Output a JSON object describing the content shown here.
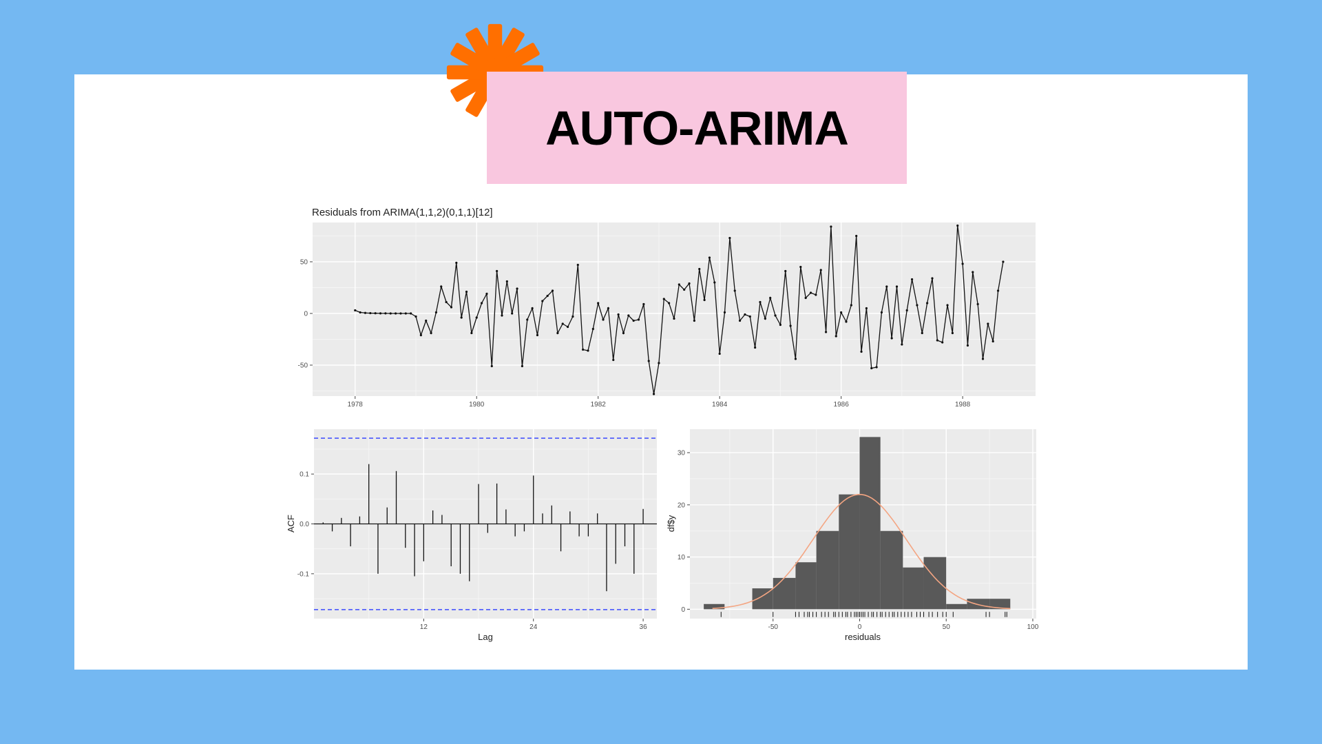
{
  "slide": {
    "title": "AUTO-ARIMA",
    "colors": {
      "background": "#74b8f2",
      "card": "#ffffff",
      "title_box": "#f9c7df",
      "starburst": "#ff6f00"
    },
    "starburst_icon": "asterisk-starburst-icon"
  },
  "chart_data": [
    {
      "type": "line",
      "title": "Residuals from ARIMA(1,1,2)(0,1,1)[12]",
      "xlabel": "",
      "ylabel": "",
      "xlim": [
        1977.3,
        1989.2
      ],
      "ylim": [
        -80,
        88
      ],
      "x_ticks": [
        1978,
        1980,
        1982,
        1984,
        1986,
        1988
      ],
      "y_ticks": [
        -50,
        0,
        50
      ],
      "grid": true,
      "x_start": 1978,
      "x_step": 0.08333,
      "values": [
        3,
        1,
        0.5,
        0.3,
        0.2,
        0.1,
        0.1,
        0,
        0,
        0,
        0,
        0,
        -3,
        -21,
        -7,
        -19,
        1,
        26,
        11,
        6,
        49,
        -4,
        21,
        -19,
        -4,
        10,
        19,
        -51,
        41,
        -2,
        31,
        0,
        24,
        -51,
        -6,
        5,
        -21,
        12,
        17,
        22,
        -19,
        -10,
        -13,
        -3,
        47,
        -35,
        -36,
        -15,
        10,
        -6,
        5,
        -45,
        -1,
        -19,
        -2,
        -7,
        -6,
        9,
        -46,
        -78,
        -48,
        14,
        10,
        -5,
        28,
        23,
        29,
        -7,
        43,
        13,
        54,
        30,
        -39,
        1,
        73,
        22,
        -7,
        -1,
        -3,
        -33,
        11,
        -5,
        15,
        -2,
        -11,
        41,
        -12,
        -44,
        45,
        15,
        20,
        18,
        42,
        -18,
        84,
        -22,
        1,
        -8,
        8,
        75,
        -37,
        5,
        -53,
        -52,
        1,
        26,
        -24,
        26,
        -30,
        3,
        33,
        8,
        -19,
        10,
        34,
        -26,
        -28,
        8,
        -19,
        85,
        48,
        -31,
        40,
        9,
        -44,
        -10,
        -27,
        22,
        50
      ]
    },
    {
      "type": "bar",
      "title": "",
      "xlabel": "Lag",
      "ylabel": "ACF",
      "xlim": [
        0,
        37.5
      ],
      "ylim": [
        -0.19,
        0.19
      ],
      "x_ticks": [
        12,
        24,
        36
      ],
      "y_ticks": [
        -0.1,
        0.0,
        0.1
      ],
      "y_tick_labels": [
        "-0.1",
        "0.0",
        "0.1"
      ],
      "confidence_bound": 0.172,
      "lags": [
        1,
        2,
        3,
        4,
        5,
        6,
        7,
        8,
        9,
        10,
        11,
        12,
        13,
        14,
        15,
        16,
        17,
        18,
        19,
        20,
        21,
        22,
        23,
        24,
        25,
        26,
        27,
        28,
        29,
        30,
        31,
        32,
        33,
        34,
        35,
        36
      ],
      "values": [
        0.003,
        -0.015,
        0.012,
        -0.045,
        0.015,
        0.12,
        -0.1,
        0.033,
        0.106,
        -0.048,
        -0.105,
        -0.075,
        0.027,
        0.018,
        -0.085,
        -0.1,
        -0.115,
        0.08,
        -0.018,
        0.081,
        0.029,
        -0.025,
        -0.015,
        0.097,
        0.021,
        0.037,
        -0.055,
        0.025,
        -0.025,
        -0.025,
        0.021,
        -0.135,
        -0.08,
        -0.045,
        -0.1,
        0.03
      ],
      "grid": true
    },
    {
      "type": "histogram",
      "title": "",
      "xlabel": "residuals",
      "ylabel": "df$y",
      "xlim": [
        -98,
        102
      ],
      "ylim": [
        -1.8,
        34.5
      ],
      "x_ticks": [
        -50,
        0,
        50,
        100
      ],
      "y_ticks": [
        0,
        10,
        20,
        30
      ],
      "bin_edges": [
        -90,
        -78,
        -62,
        -50,
        -37,
        -25,
        -12,
        0,
        12,
        25,
        37,
        50,
        62,
        75,
        87
      ],
      "counts": [
        1,
        0,
        4,
        6,
        9,
        15,
        22,
        33,
        15,
        8,
        10,
        1,
        2,
        2
      ],
      "density_curve": {
        "mean": 0,
        "sd": 27,
        "peak_count": 22
      },
      "rug": [
        -80,
        -50,
        -37,
        -35,
        -32,
        -30,
        -29,
        -27,
        -25,
        -22,
        -20,
        -18,
        -15,
        -14,
        -12,
        -10,
        -8,
        -7,
        -5,
        -3,
        -2,
        -1,
        0,
        0,
        1,
        2,
        3,
        5,
        7,
        8,
        10,
        12,
        13,
        15,
        17,
        19,
        20,
        22,
        24,
        26,
        28,
        30,
        33,
        35,
        37,
        40,
        42,
        45,
        48,
        50,
        54,
        73,
        75,
        84,
        85
      ],
      "grid": true,
      "colors": {
        "bar": "#595959",
        "curve": "#f4a582"
      }
    }
  ]
}
